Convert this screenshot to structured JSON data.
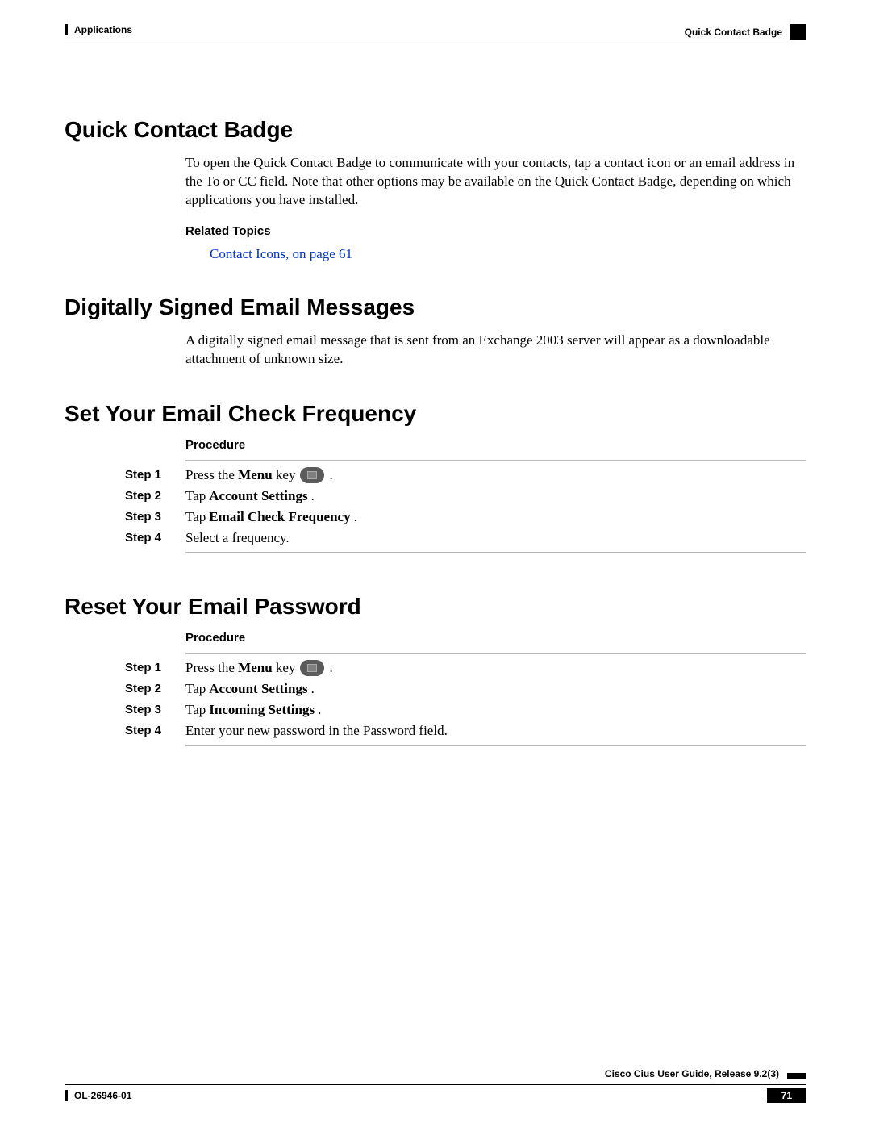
{
  "header": {
    "left": "Applications",
    "right": "Quick Contact Badge"
  },
  "section1": {
    "heading": "Quick Contact Badge",
    "body": "To open the Quick Contact Badge to communicate with your contacts, tap a contact icon or an email address in the To or CC field. Note that other options may be available on the Quick Contact Badge, depending on which applications you have installed.",
    "related_label": "Related Topics",
    "related_link": "Contact Icons,  on page 61"
  },
  "section2": {
    "heading": "Digitally Signed Email Messages",
    "body": "A digitally signed email message that is sent from an Exchange 2003 server will appear as a downloadable attachment of unknown size."
  },
  "section3": {
    "heading": "Set Your Email Check Frequency",
    "procedure_label": "Procedure",
    "steps": [
      {
        "label": "Step 1",
        "pre": "Press the ",
        "bold": "Menu",
        "post": " key ",
        "icon": true,
        "tail": "."
      },
      {
        "label": "Step 2",
        "pre": "Tap ",
        "bold": "Account Settings",
        "post": "."
      },
      {
        "label": "Step 3",
        "pre": "Tap ",
        "bold": "Email Check Frequency",
        "post": "."
      },
      {
        "label": "Step 4",
        "pre": "Select a frequency.",
        "bold": "",
        "post": ""
      }
    ]
  },
  "section4": {
    "heading": "Reset Your Email Password",
    "procedure_label": "Procedure",
    "steps": [
      {
        "label": "Step 1",
        "pre": "Press the ",
        "bold": "Menu",
        "post": " key ",
        "icon": true,
        "tail": "."
      },
      {
        "label": "Step 2",
        "pre": "Tap ",
        "bold": "Account Settings",
        "post": "."
      },
      {
        "label": "Step 3",
        "pre": "Tap ",
        "bold": "Incoming Settings",
        "post": "."
      },
      {
        "label": "Step 4",
        "pre": "Enter your new password in the Password field.",
        "bold": "",
        "post": ""
      }
    ]
  },
  "footer": {
    "title": "Cisco Cius User Guide, Release 9.2(3)",
    "doc_id": "OL-26946-01",
    "page_num": "71"
  },
  "colors": {
    "text": "#000000",
    "link": "#0033cc",
    "rule_grey": "#b8b8b8",
    "icon_bg": "#5a5a5a",
    "background": "#ffffff"
  }
}
